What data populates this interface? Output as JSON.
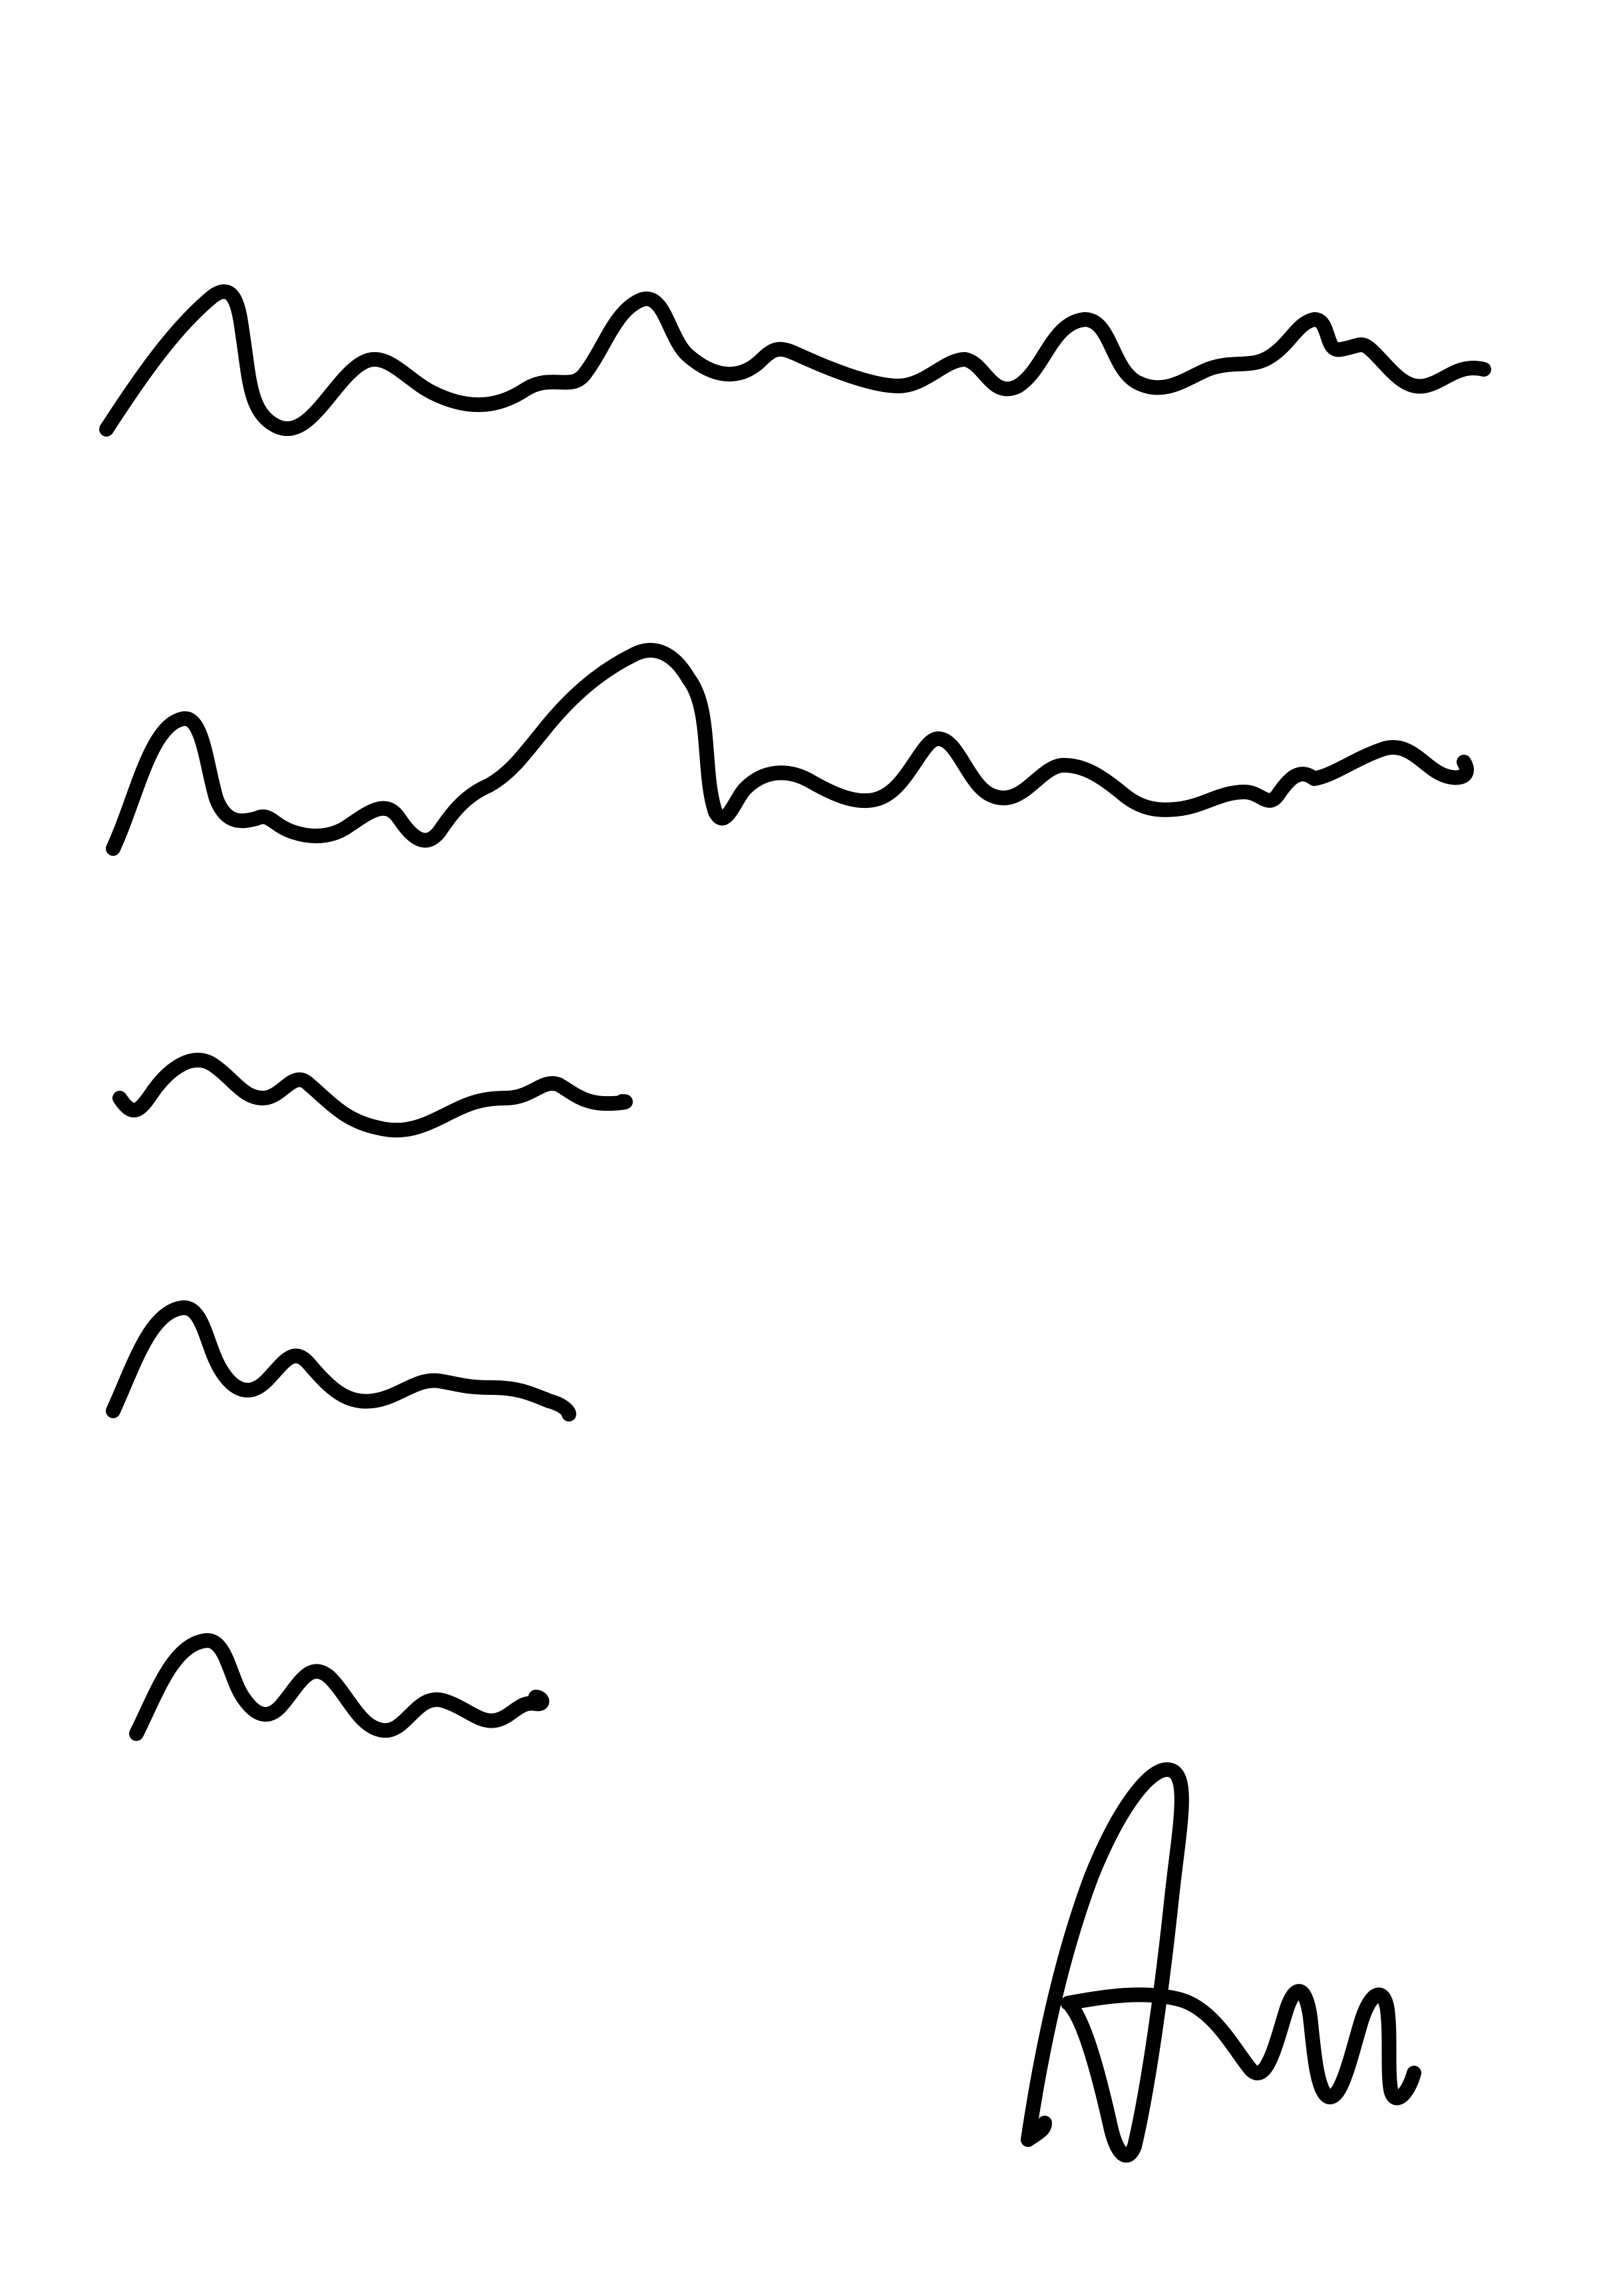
{
  "canvas": {
    "background_color": "#ffffff",
    "ink_color": "#000000"
  },
  "scribbles": {
    "count": 5,
    "style": "wavy handwriting-like lines (illegible)"
  },
  "signature": {
    "initials": "An"
  }
}
